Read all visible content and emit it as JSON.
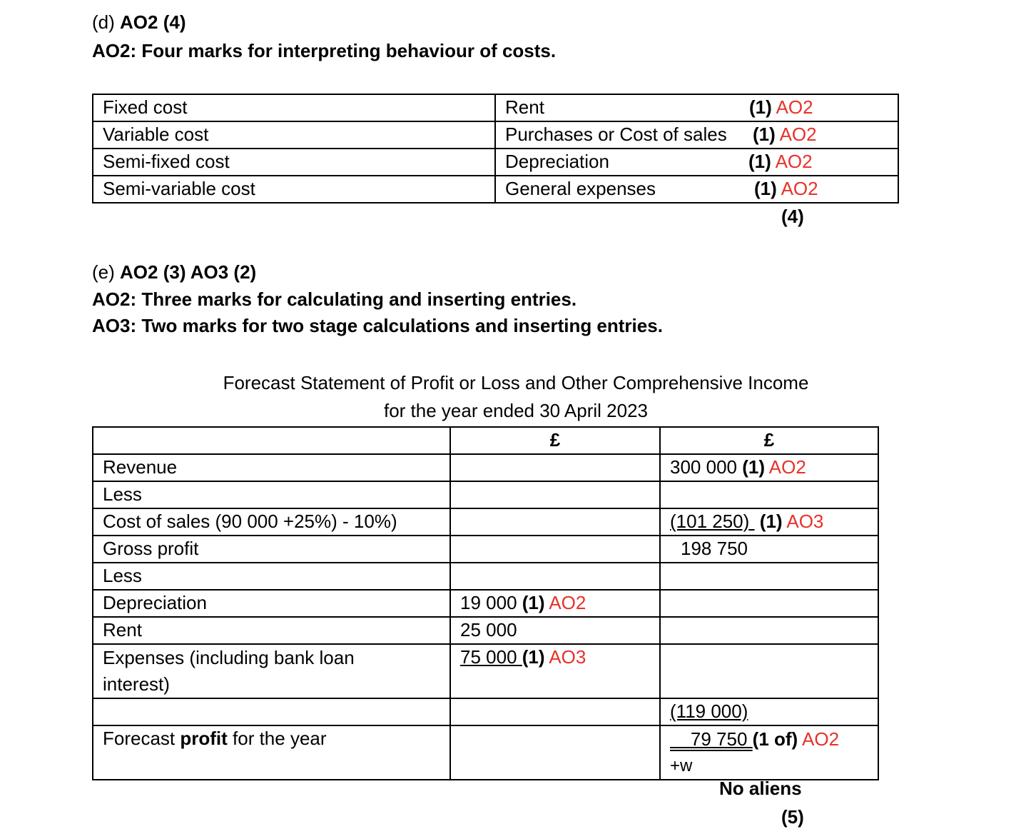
{
  "section_d": {
    "prefix": "(d)",
    "heading": "AO2 (4)",
    "instruction": "AO2: Four marks for interpreting behaviour of costs.",
    "rows": [
      {
        "cost": "Fixed cost",
        "example": "Rent",
        "mark": "(1)",
        "ao": "AO2"
      },
      {
        "cost": "Variable cost",
        "example": "Purchases or Cost of sales",
        "mark": "(1)",
        "ao": "AO2"
      },
      {
        "cost": "Semi-fixed cost",
        "example": "Depreciation",
        "mark": "(1)",
        "ao": "AO2"
      },
      {
        "cost": "Semi-variable cost",
        "example": "General expenses",
        "mark": "(1)",
        "ao": "AO2"
      }
    ],
    "total": "(4)"
  },
  "section_e": {
    "prefix": "(e)",
    "heading": "AO2 (3) AO3 (2)",
    "instruction1": "AO2: Three marks for calculating and inserting entries.",
    "instruction2": "AO3: Two marks for two stage calculations and inserting entries.",
    "statement_title": "Forecast Statement of Profit or Loss and Other Comprehensive Income",
    "statement_subtitle": "for the year ended 30 April 2023",
    "col_headers": [
      "£",
      "£"
    ],
    "rows": {
      "revenue": {
        "label": "Revenue",
        "col2": "300 000",
        "mark": "(1)",
        "ao": "AO2"
      },
      "less1": {
        "label": "Less"
      },
      "cos": {
        "label": "Cost of sales (90 000 +25%) - 10%)",
        "col2": "(101 250)",
        "mark": "(1)",
        "ao": "AO3"
      },
      "gross": {
        "label": "Gross profit",
        "col2": "198 750"
      },
      "less2": {
        "label": "Less"
      },
      "dep": {
        "label": "Depreciation",
        "col1": "19 000",
        "mark": "(1)",
        "ao": "AO2"
      },
      "rent": {
        "label": "Rent",
        "col1": "25 000"
      },
      "exp": {
        "label_line1": "Expenses (including bank loan",
        "label_line2": "interest)",
        "col1": "75 000",
        "mark": "(1)",
        "ao": "AO3"
      },
      "subtotal": {
        "col2": "(119 000)"
      },
      "profit": {
        "label_pre": "Forecast ",
        "label_bold": "profit",
        "label_post": " for the year",
        "col2": "79 750",
        "mark": "(1 of)",
        "ao": "AO2",
        "note": "+w"
      }
    },
    "footer_note": "No aliens",
    "total": "(5)"
  },
  "colors": {
    "ao_label": "#e8312a",
    "text": "#000000"
  }
}
